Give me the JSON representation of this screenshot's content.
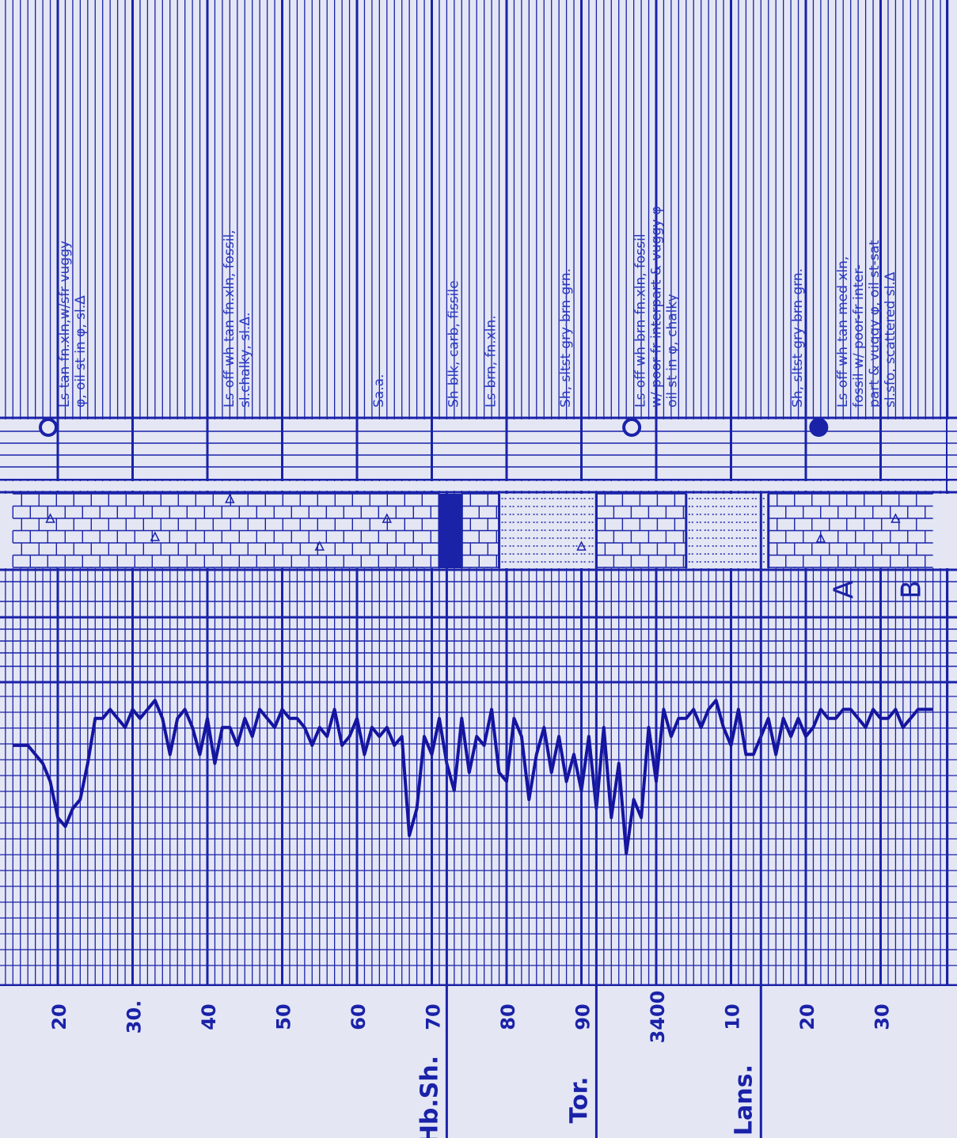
{
  "depth_labels": [
    {
      "text": "20",
      "depth": 20
    },
    {
      "text": "30.",
      "depth": 30
    },
    {
      "text": "40",
      "depth": 40
    },
    {
      "text": "50",
      "depth": 50
    },
    {
      "text": "60",
      "depth": 60
    },
    {
      "text": "70",
      "depth": 70
    },
    {
      "text": "80",
      "depth": 80
    },
    {
      "text": "90",
      "depth": 90
    },
    {
      "text": "3400",
      "depth": 100
    },
    {
      "text": "10",
      "depth": 110
    },
    {
      "text": "20",
      "depth": 120
    },
    {
      "text": "30",
      "depth": 130
    }
  ],
  "formation_tops": [
    {
      "text": "Hb.Sh.",
      "depth": 72
    },
    {
      "text": "Tor.",
      "depth": 92
    },
    {
      "text": "Lans.",
      "depth": 114
    }
  ],
  "lithology_descriptions": [
    {
      "lines": [
        "Ls-tan-fn.xln,w/sfr vuggy",
        "φ, oil st in φ, sl.Δ"
      ],
      "depth": 20
    },
    {
      "lines": [
        "Ls-off wh-tan-fn.xln, fossil,",
        "sl.chalky, sl.Δ."
      ],
      "depth": 42
    },
    {
      "lines": [
        "Sa.a."
      ],
      "depth": 62
    },
    {
      "lines": [
        "Sh-blk, carb, fissile"
      ],
      "depth": 72
    },
    {
      "lines": [
        "Ls-brn, fn.xln."
      ],
      "depth": 77
    },
    {
      "lines": [
        "Sh, sltst-gry-brn-grn."
      ],
      "depth": 87
    },
    {
      "lines": [
        "Ls-off wh-brn-fn.xln, fossil",
        "w/ poor-fr interpart & vuggy φ",
        "oil st in φ, chalky"
      ],
      "depth": 97
    },
    {
      "lines": [
        "Sh, sltst-gry-brn-grn."
      ],
      "depth": 118
    },
    {
      "lines": [
        "Ls-off wh-tan-med xln,",
        "fossil w/ poor-fr inter-",
        "part & vuggy φ, oil st-sat",
        "sl.sfo, scattered sl.Δ"
      ],
      "depth": 124
    }
  ],
  "show_symbols": [
    {
      "type": "open",
      "depth": 20
    },
    {
      "type": "open",
      "depth": 98
    },
    {
      "type": "solid",
      "depth": 123
    }
  ],
  "lithology_column": [
    {
      "type": "limestone",
      "from": 14,
      "to": 71
    },
    {
      "type": "shale",
      "from": 71,
      "to": 74
    },
    {
      "type": "limestone",
      "from": 74,
      "to": 79
    },
    {
      "type": "siltstone",
      "from": 79,
      "to": 92
    },
    {
      "type": "limestone",
      "from": 92,
      "to": 104
    },
    {
      "type": "siltstone",
      "from": 104,
      "to": 115
    },
    {
      "type": "limestone",
      "from": 115,
      "to": 137
    }
  ],
  "track_markers": [
    {
      "text": "A",
      "depth": 125
    },
    {
      "text": "B",
      "depth": 134
    }
  ],
  "curve": {
    "name": "drilling time",
    "depths": [
      14,
      16,
      18,
      19,
      20,
      21,
      22,
      23,
      24,
      25,
      26,
      27,
      28,
      29,
      30,
      31,
      32,
      33,
      34,
      35,
      36,
      37,
      38,
      39,
      40,
      41,
      42,
      43,
      44,
      45,
      46,
      47,
      48,
      49,
      50,
      51,
      52,
      53,
      54,
      55,
      56,
      57,
      58,
      59,
      60,
      61,
      62,
      63,
      64,
      65,
      66,
      67,
      68,
      69,
      70,
      71,
      72,
      73,
      74,
      75,
      76,
      77,
      78,
      79,
      80,
      81,
      82,
      83,
      84,
      85,
      86,
      87,
      88,
      89,
      90,
      91,
      92,
      93,
      94,
      95,
      96,
      97,
      98,
      99,
      100,
      101,
      102,
      103,
      104,
      105,
      106,
      107,
      108,
      109,
      110,
      111,
      112,
      113,
      114,
      115,
      116,
      117,
      118,
      119,
      120,
      121,
      122,
      123,
      124,
      125,
      126,
      127,
      128,
      129,
      130,
      131,
      132,
      133,
      134,
      135,
      136,
      137
    ],
    "values": [
      5,
      5,
      7,
      9,
      13,
      14,
      12,
      11,
      7,
      2,
      2,
      1,
      2,
      3,
      1,
      2,
      1,
      0,
      2,
      6,
      2,
      1,
      3,
      6,
      2,
      7,
      3,
      3,
      5,
      2,
      4,
      1,
      2,
      3,
      1,
      2,
      2,
      3,
      5,
      3,
      4,
      1,
      5,
      4,
      2,
      6,
      3,
      4,
      3,
      5,
      4,
      15,
      12,
      4,
      6,
      2,
      7,
      10,
      2,
      8,
      4,
      5,
      1,
      8,
      9,
      2,
      4,
      11,
      6,
      3,
      8,
      4,
      9,
      6,
      10,
      4,
      12,
      3,
      13,
      7,
      17,
      11,
      13,
      3,
      9,
      1,
      4,
      2,
      2,
      1,
      3,
      1,
      0,
      3,
      5,
      1,
      6,
      6,
      4,
      2,
      6,
      2,
      4,
      2,
      4,
      3,
      1,
      2,
      2,
      1,
      1,
      2,
      3,
      1,
      2,
      2,
      1,
      3,
      2,
      1,
      1,
      1
    ],
    "value_max": 18
  }
}
